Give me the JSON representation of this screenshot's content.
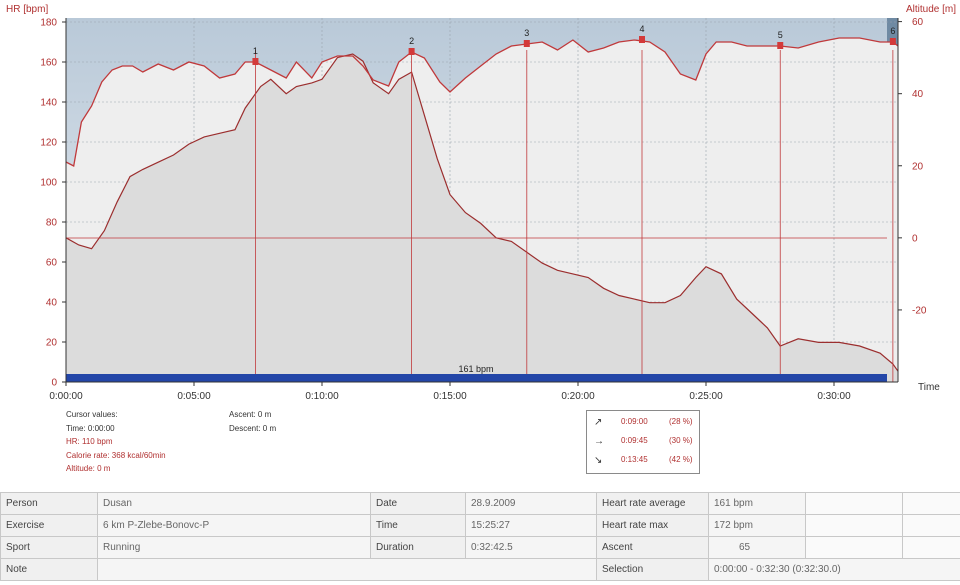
{
  "chart_data": {
    "type": "line",
    "y_left_label": "HR [bpm]",
    "y_right_label": "Altitude [m]",
    "x_axis_label": "Time",
    "y_left_ticks": [
      0,
      20,
      40,
      60,
      80,
      100,
      120,
      140,
      160,
      180
    ],
    "y_right_ticks": [
      -20,
      0,
      20,
      40,
      60
    ],
    "x_ticks": [
      "0:00:00",
      "0:05:00",
      "0:10:00",
      "0:15:00",
      "0:20:00",
      "0:25:00",
      "0:30:00"
    ],
    "y_left_range": [
      0,
      182
    ],
    "y_right_range": [
      -40,
      61
    ],
    "x_range_min": [
      0,
      32.5
    ],
    "hr_avg_label": "161 bpm",
    "hr_avg": 161,
    "reference_hr": 72,
    "laps": [
      {
        "label": "1",
        "t_min": 7.4
      },
      {
        "label": "2",
        "t_min": 13.5
      },
      {
        "label": "3",
        "t_min": 18.0
      },
      {
        "label": "4",
        "t_min": 22.5
      },
      {
        "label": "5",
        "t_min": 27.9
      },
      {
        "label": "6",
        "t_min": 32.3
      }
    ],
    "series": [
      {
        "name": "HR",
        "t": [
          0,
          0.3,
          0.6,
          1.0,
          1.4,
          1.8,
          2.2,
          2.6,
          3.0,
          3.6,
          4.2,
          4.8,
          5.4,
          6.0,
          6.6,
          7.0,
          7.4,
          8.0,
          8.6,
          9.0,
          9.6,
          10.0,
          10.6,
          11.2,
          11.6,
          12.0,
          12.6,
          13.0,
          13.5,
          14.0,
          14.6,
          15.0,
          15.6,
          16.2,
          16.8,
          17.4,
          18.0,
          18.6,
          19.2,
          19.8,
          20.4,
          21.0,
          21.6,
          22.2,
          22.8,
          23.4,
          24.0,
          24.6,
          25.0,
          25.4,
          26.0,
          26.6,
          27.2,
          27.9,
          28.6,
          29.4,
          30.2,
          31.0,
          31.8,
          32.3,
          32.5
        ],
        "values": [
          110,
          108,
          130,
          138,
          150,
          156,
          158,
          158,
          155,
          159,
          156,
          160,
          158,
          152,
          154,
          160,
          160,
          156,
          152,
          160,
          152,
          160,
          163,
          163,
          158,
          151,
          148,
          160,
          165,
          162,
          150,
          145,
          152,
          158,
          164,
          168,
          169,
          170,
          166,
          171,
          165,
          167,
          170,
          171,
          170,
          165,
          154,
          151,
          164,
          170,
          170,
          168,
          168,
          168,
          167,
          170,
          172,
          172,
          170,
          170,
          168
        ]
      },
      {
        "name": "Altitude",
        "t": [
          0,
          0.5,
          1.0,
          1.5,
          2.0,
          2.5,
          3.0,
          3.6,
          4.2,
          4.8,
          5.4,
          6.0,
          6.6,
          7.0,
          7.6,
          8.0,
          8.6,
          9.0,
          9.6,
          10.0,
          10.6,
          11.2,
          11.6,
          12.0,
          12.6,
          13.0,
          13.5,
          14.0,
          14.5,
          15.0,
          15.6,
          16.2,
          16.8,
          17.4,
          18.0,
          18.6,
          19.2,
          19.8,
          20.4,
          21.0,
          21.6,
          22.2,
          22.8,
          23.4,
          24.0,
          24.6,
          25.0,
          25.6,
          26.2,
          26.8,
          27.4,
          27.9,
          28.6,
          29.4,
          30.2,
          31.0,
          31.8,
          32.3,
          32.5
        ],
        "values": [
          0,
          -2,
          -3,
          2,
          10,
          17,
          19,
          21,
          23,
          26,
          28,
          29,
          30,
          36,
          42,
          44,
          40,
          42,
          43,
          44,
          50,
          51,
          49,
          43,
          40,
          44,
          46,
          34,
          22,
          12,
          7,
          4,
          0,
          -1,
          -4,
          -7,
          -9,
          -10,
          -11,
          -14,
          -16,
          -17,
          -18,
          -18,
          -16,
          -11,
          -8,
          -10,
          -17,
          -21,
          -25,
          -30,
          -28,
          -29,
          -29,
          -30,
          -32,
          -35,
          -37
        ]
      }
    ]
  },
  "cursor": {
    "title": "Cursor values:",
    "time": "Time: 0:00:00",
    "hr": "HR: 110 bpm",
    "calorie": "Calorie rate: 368 kcal/60min",
    "altitude": "Altitude: 0 m"
  },
  "ascent_text": "Ascent: 0 m",
  "descent_text": "Descent: 0 m",
  "direction": [
    {
      "arrow": "↗",
      "time": "0:09:00",
      "pct": "(28 %)"
    },
    {
      "arrow": "→",
      "time": "0:09:45",
      "pct": "(30 %)"
    },
    {
      "arrow": "↘",
      "time": "0:13:45",
      "pct": "(42 %)"
    }
  ],
  "info": {
    "person_label": "Person",
    "person": "Dusan",
    "date_label": "Date",
    "date": "28.9.2009",
    "hr_avg_label": "Heart rate average",
    "hr_avg": "161 bpm",
    "exercise_label": "Exercise",
    "exercise": "6 km P-Zlebe-Bonovc-P",
    "time_label": "Time",
    "time": "15:25:27",
    "hr_max_label": "Heart rate max",
    "hr_max": "172 bpm",
    "sport_label": "Sport",
    "sport": "Running",
    "duration_label": "Duration",
    "duration": "0:32:42.5",
    "ascent_label": "Ascent",
    "ascent": "65",
    "note_label": "Note",
    "selection_label": "Selection",
    "selection": "0:00:00 - 0:32:30 (0:32:30.0)"
  },
  "colors": {
    "hr_line": "#c0393b",
    "altitude_line": "#9b2e2e",
    "altitude_fill": "#dcdcdc",
    "hr_band": "#eeeeee",
    "top_gradient": "#b9c9d8",
    "avg_bar": "#2346a8",
    "lap_marker": "#d33a3a"
  }
}
